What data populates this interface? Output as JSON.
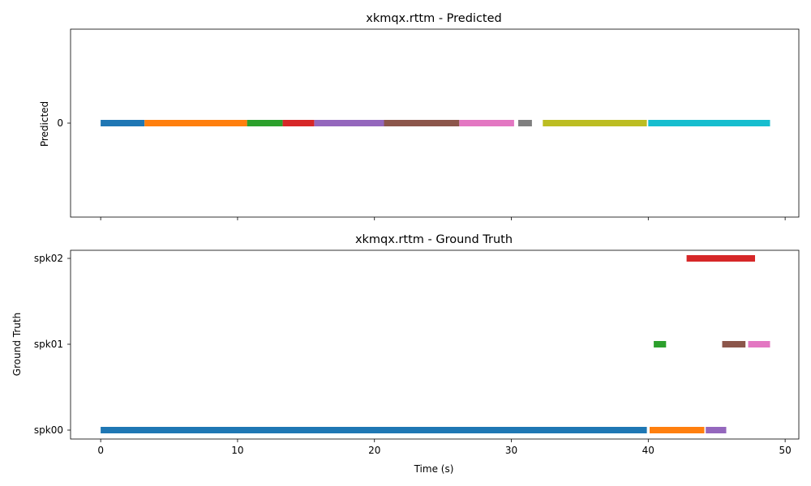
{
  "chart_data": [
    {
      "type": "timeline",
      "title": "xkmqx.rttm - Predicted",
      "ylabel": "Predicted",
      "xlabel": "",
      "xlim": [
        -2.2,
        51.0
      ],
      "rows": [
        "0"
      ],
      "xticks": [
        0,
        10,
        20,
        30,
        40,
        50
      ],
      "show_xtick_labels": false,
      "segments": [
        {
          "row": "0",
          "start": 0.0,
          "end": 3.2,
          "color": "#1f77b4"
        },
        {
          "row": "0",
          "start": 3.2,
          "end": 10.7,
          "color": "#ff7f0e"
        },
        {
          "row": "0",
          "start": 10.7,
          "end": 13.3,
          "color": "#2ca02c"
        },
        {
          "row": "0",
          "start": 13.3,
          "end": 15.6,
          "color": "#d62728"
        },
        {
          "row": "0",
          "start": 15.6,
          "end": 20.7,
          "color": "#9467bd"
        },
        {
          "row": "0",
          "start": 20.7,
          "end": 26.2,
          "color": "#8c564b"
        },
        {
          "row": "0",
          "start": 26.2,
          "end": 30.2,
          "color": "#e377c2"
        },
        {
          "row": "0",
          "start": 30.5,
          "end": 31.5,
          "color": "#7f7f7f"
        },
        {
          "row": "0",
          "start": 32.3,
          "end": 39.9,
          "color": "#bcbd22"
        },
        {
          "row": "0",
          "start": 40.0,
          "end": 48.9,
          "color": "#17becf"
        }
      ]
    },
    {
      "type": "timeline",
      "title": "xkmqx.rttm - Ground Truth",
      "ylabel": "Ground Truth",
      "xlabel": "Time (s)",
      "xlim": [
        -2.2,
        51.0
      ],
      "rows": [
        "spk00",
        "spk01",
        "spk02"
      ],
      "xticks": [
        0,
        10,
        20,
        30,
        40,
        50
      ],
      "show_xtick_labels": true,
      "segments": [
        {
          "row": "spk00",
          "start": 0.0,
          "end": 39.9,
          "color": "#1f77b4"
        },
        {
          "row": "spk00",
          "start": 40.1,
          "end": 44.1,
          "color": "#ff7f0e"
        },
        {
          "row": "spk01",
          "start": 40.4,
          "end": 41.3,
          "color": "#2ca02c"
        },
        {
          "row": "spk02",
          "start": 42.8,
          "end": 47.8,
          "color": "#d62728"
        },
        {
          "row": "spk00",
          "start": 44.2,
          "end": 45.7,
          "color": "#9467bd"
        },
        {
          "row": "spk01",
          "start": 45.4,
          "end": 47.1,
          "color": "#8c564b"
        },
        {
          "row": "spk01",
          "start": 47.3,
          "end": 48.9,
          "color": "#e377c2"
        }
      ]
    }
  ]
}
